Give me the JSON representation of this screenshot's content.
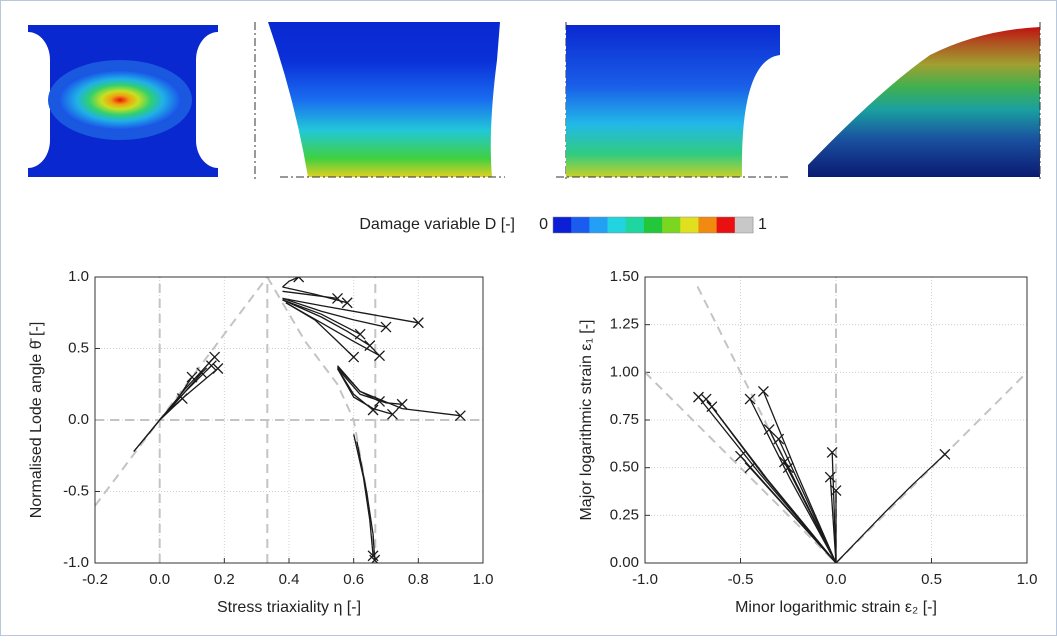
{
  "colorbar": {
    "label": "Damage variable D [-]",
    "min": 0,
    "max": 1,
    "colors": [
      "#0a1fd6",
      "#1a5cf0",
      "#23a0f5",
      "#22d4e0",
      "#1fd6a0",
      "#22c83a",
      "#7ad61e",
      "#e0e020",
      "#f08a10",
      "#e81010",
      "#c8c8c8"
    ]
  },
  "chart_data": [
    {
      "type": "line",
      "xlabel": "Stress triaxiality η [-]",
      "ylabel": "Normalised Lode angle θ̄ [-]",
      "xlim": [
        -0.2,
        1.0
      ],
      "xticks": [
        -0.2,
        {
          "value": 0,
          "label": "0.0"
        },
        0.2,
        0.4,
        0.6,
        0.8,
        {
          "value": 1,
          "label": "1.0"
        }
      ],
      "ylim": [
        -1,
        1
      ],
      "yticks": [
        {
          "value": -1,
          "label": "-1.0"
        },
        -0.5,
        {
          "value": 0,
          "label": "0.0"
        },
        0.5,
        {
          "value": 1,
          "label": "1.0"
        }
      ],
      "grid": true,
      "series": [
        {
          "color": "#c4c4c4",
          "style": "dashed",
          "x": [
            -0.2,
            0.333
          ],
          "values": [
            -0.6,
            1
          ]
        },
        {
          "color": "#c4c4c4",
          "style": "dashed",
          "x": [
            0.333,
            0.45,
            0.55,
            0.6,
            0.64,
            0.667
          ],
          "values": [
            1,
            0.55,
            0.25,
            0,
            -0.5,
            -1
          ]
        },
        {
          "color": "#c4c4c4",
          "style": "dashed",
          "x": [
            0,
            0
          ],
          "values": [
            -1,
            1
          ]
        },
        {
          "color": "#c4c4c4",
          "style": "dashed",
          "x": [
            0.333,
            0.333
          ],
          "values": [
            -1,
            1
          ]
        },
        {
          "color": "#c4c4c4",
          "style": "dashed",
          "x": [
            0.667,
            0.667
          ],
          "values": [
            -1,
            1
          ]
        },
        {
          "color": "#c4c4c4",
          "style": "dashed",
          "x": [
            -0.2,
            1
          ],
          "values": [
            0,
            0
          ]
        },
        {
          "color": "#1a1a1a",
          "style": "solid",
          "x": [
            -0.08,
            0,
            0.08,
            0.17
          ],
          "values": [
            -0.22,
            0,
            0.22,
            0.44
          ]
        },
        {
          "color": "#1a1a1a",
          "style": "solid",
          "x": [
            -0.08,
            0,
            0.08,
            0.16
          ],
          "values": [
            -0.22,
            0,
            0.2,
            0.38
          ]
        },
        {
          "color": "#1a1a1a",
          "style": "solid",
          "x": [
            -0.05,
            0,
            0.06,
            0.13
          ],
          "values": [
            -0.14,
            0,
            0.15,
            0.33
          ]
        },
        {
          "color": "#1a1a1a",
          "style": "solid",
          "x": [
            0,
            0.05,
            0.1
          ],
          "values": [
            0,
            0.13,
            0.3
          ]
        },
        {
          "color": "#1a1a1a",
          "style": "solid",
          "x": [
            0,
            0.04,
            0.07
          ],
          "values": [
            0,
            0.09,
            0.15
          ]
        },
        {
          "color": "#1a1a1a",
          "style": "solid",
          "x": [
            0,
            0.08,
            0.18
          ],
          "values": [
            0,
            0.17,
            0.36
          ]
        },
        {
          "color": "#1a1a1a",
          "style": "solid",
          "x": [
            0.38,
            0.5,
            0.65,
            0.8
          ],
          "values": [
            0.85,
            0.8,
            0.74,
            0.68
          ]
        },
        {
          "color": "#1a1a1a",
          "style": "solid",
          "x": [
            0.38,
            0.5,
            0.6,
            0.7
          ],
          "values": [
            0.85,
            0.76,
            0.7,
            0.65
          ]
        },
        {
          "color": "#1a1a1a",
          "style": "solid",
          "x": [
            0.39,
            0.48,
            0.55,
            0.6
          ],
          "values": [
            0.82,
            0.7,
            0.55,
            0.44
          ]
        },
        {
          "color": "#1a1a1a",
          "style": "solid",
          "x": [
            0.39,
            0.5,
            0.6,
            0.68
          ],
          "values": [
            0.82,
            0.68,
            0.55,
            0.45
          ]
        },
        {
          "color": "#1a1a1a",
          "style": "solid",
          "x": [
            0.38,
            0.5,
            0.58,
            0.65
          ],
          "values": [
            0.84,
            0.72,
            0.62,
            0.52
          ]
        },
        {
          "color": "#1a1a1a",
          "style": "solid",
          "x": [
            0.38,
            0.5,
            0.62
          ],
          "values": [
            0.84,
            0.74,
            0.6
          ]
        },
        {
          "color": "#1a1a1a",
          "style": "solid",
          "x": [
            0.38,
            0.45,
            0.55
          ],
          "values": [
            0.9,
            0.88,
            0.85
          ]
        },
        {
          "color": "#1a1a1a",
          "style": "solid",
          "x": [
            0.38,
            0.48,
            0.58
          ],
          "values": [
            0.93,
            0.88,
            0.82
          ]
        },
        {
          "color": "#1a1a1a",
          "style": "solid",
          "x": [
            0.38,
            0.4,
            0.43
          ],
          "values": [
            0.93,
            0.97,
            1.0
          ]
        },
        {
          "color": "#1a1a1a",
          "style": "solid",
          "x": [
            0.55,
            0.62,
            0.75,
            0.93
          ],
          "values": [
            0.38,
            0.2,
            0.08,
            0.03
          ]
        },
        {
          "color": "#1a1a1a",
          "style": "solid",
          "x": [
            0.55,
            0.62,
            0.7,
            0.75
          ],
          "values": [
            0.36,
            0.18,
            0.12,
            0.11
          ]
        },
        {
          "color": "#1a1a1a",
          "style": "solid",
          "x": [
            0.55,
            0.6,
            0.66,
            0.72
          ],
          "values": [
            0.36,
            0.16,
            0.08,
            0.04
          ]
        },
        {
          "color": "#1a1a1a",
          "style": "solid",
          "x": [
            0.55,
            0.6,
            0.66
          ],
          "values": [
            0.36,
            0.18,
            0.07
          ]
        },
        {
          "color": "#1a1a1a",
          "style": "solid",
          "x": [
            0.55,
            0.62,
            0.68
          ],
          "values": [
            0.37,
            0.2,
            0.13
          ]
        },
        {
          "color": "#1a1a1a",
          "style": "solid",
          "x": [
            0.6,
            0.63,
            0.65,
            0.66
          ],
          "values": [
            -0.1,
            -0.4,
            -0.7,
            -0.95
          ]
        },
        {
          "color": "#1a1a1a",
          "style": "solid",
          "x": [
            0.61,
            0.64,
            0.66,
            0.665
          ],
          "values": [
            -0.15,
            -0.5,
            -0.8,
            -0.98
          ]
        }
      ]
    },
    {
      "type": "line",
      "xlabel": "Minor logarithmic strain ε₂ [-]",
      "ylabel": "Major logarithmic strain ε₁ [-]",
      "xlim": [
        -1,
        1
      ],
      "xticks": [
        {
          "value": -1,
          "label": "-1.0"
        },
        -0.5,
        {
          "value": 0,
          "label": "0.0"
        },
        0.5,
        {
          "value": 1,
          "label": "1.0"
        }
      ],
      "ylim": [
        0,
        1.5
      ],
      "yticks": [
        {
          "value": 0,
          "label": "0.00"
        },
        0.25,
        {
          "value": 0.5,
          "label": "0.50"
        },
        0.75,
        {
          "value": 1,
          "label": "1.00"
        },
        1.25,
        {
          "value": 1.5,
          "label": "1.50"
        }
      ],
      "grid": true,
      "series": [
        {
          "color": "#c4c4c4",
          "style": "dashed",
          "x": [
            0,
            1
          ],
          "values": [
            0,
            1
          ]
        },
        {
          "color": "#c4c4c4",
          "style": "dashed",
          "x": [
            -0.725,
            0
          ],
          "values": [
            1.45,
            0
          ]
        },
        {
          "color": "#c4c4c4",
          "style": "dashed",
          "x": [
            -1,
            0
          ],
          "values": [
            1,
            0
          ]
        },
        {
          "color": "#c4c4c4",
          "style": "dashed",
          "x": [
            0,
            0
          ],
          "values": [
            0,
            1.5
          ]
        },
        {
          "color": "#1a1a1a",
          "style": "solid",
          "x": [
            0,
            -0.4,
            -0.72
          ],
          "values": [
            0,
            0.47,
            0.87
          ]
        },
        {
          "color": "#1a1a1a",
          "style": "solid",
          "x": [
            0,
            -0.38,
            -0.68
          ],
          "values": [
            0,
            0.46,
            0.86
          ]
        },
        {
          "color": "#1a1a1a",
          "style": "solid",
          "x": [
            0,
            -0.36,
            -0.65
          ],
          "values": [
            0,
            0.44,
            0.82
          ]
        },
        {
          "color": "#1a1a1a",
          "style": "solid",
          "x": [
            0,
            -0.5
          ],
          "values": [
            0,
            0.56
          ]
        },
        {
          "color": "#1a1a1a",
          "style": "solid",
          "x": [
            0,
            -0.45
          ],
          "values": [
            0,
            0.5
          ]
        },
        {
          "color": "#1a1a1a",
          "style": "solid",
          "x": [
            0,
            -0.24,
            -0.45
          ],
          "values": [
            0,
            0.44,
            0.86
          ]
        },
        {
          "color": "#1a1a1a",
          "style": "solid",
          "x": [
            0,
            -0.2,
            -0.38
          ],
          "values": [
            0,
            0.46,
            0.9
          ]
        },
        {
          "color": "#1a1a1a",
          "style": "solid",
          "x": [
            0,
            -0.35
          ],
          "values": [
            0,
            0.7
          ]
        },
        {
          "color": "#1a1a1a",
          "style": "solid",
          "x": [
            0,
            -0.3
          ],
          "values": [
            0,
            0.65
          ]
        },
        {
          "color": "#1a1a1a",
          "style": "solid",
          "x": [
            0,
            -0.25
          ],
          "values": [
            0,
            0.5
          ]
        },
        {
          "color": "#1a1a1a",
          "style": "solid",
          "x": [
            0,
            -0.27
          ],
          "values": [
            0,
            0.53
          ]
        },
        {
          "color": "#1a1a1a",
          "style": "solid",
          "x": [
            0,
            -0.02
          ],
          "values": [
            0,
            0.58
          ]
        },
        {
          "color": "#1a1a1a",
          "style": "solid",
          "x": [
            0,
            -0.03
          ],
          "values": [
            0,
            0.45
          ]
        },
        {
          "color": "#1a1a1a",
          "style": "solid",
          "x": [
            0,
            0
          ],
          "values": [
            0,
            0.38
          ]
        },
        {
          "color": "#1a1a1a",
          "style": "solid",
          "x": [
            0,
            0.25,
            0.4,
            0.57
          ],
          "values": [
            0,
            0.26,
            0.41,
            0.57
          ]
        }
      ]
    }
  ]
}
